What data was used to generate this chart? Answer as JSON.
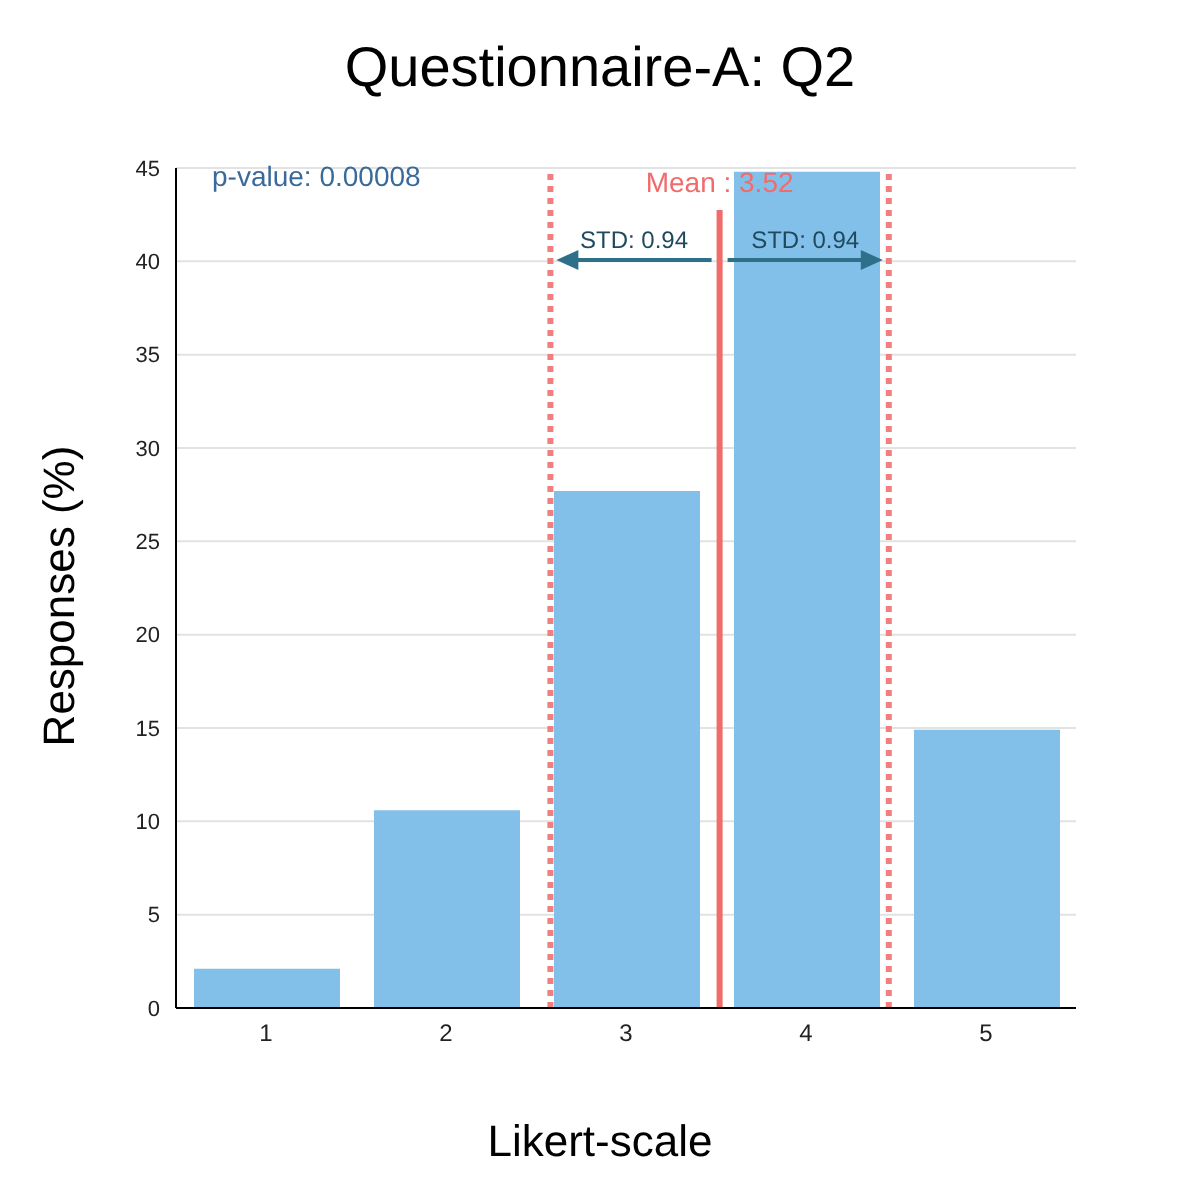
{
  "chart_data": {
    "type": "bar",
    "title": "Questionnaire-A: Q2",
    "xlabel": "Likert-scale",
    "ylabel": "Responses (%)",
    "x": [
      1,
      2,
      3,
      4,
      5
    ],
    "values": [
      2.1,
      10.6,
      27.7,
      44.8,
      14.9
    ],
    "color": "#82c0ea",
    "xlim": [
      0.5,
      5.5
    ],
    "xticks": [
      1,
      2,
      3,
      4,
      5
    ],
    "ylim": [
      0,
      45
    ],
    "yticks": [
      0,
      5,
      10,
      15,
      20,
      25,
      30,
      35,
      40,
      45
    ],
    "grid": "y",
    "ref_lines": [
      {
        "axis": "x",
        "value": 3.52,
        "label": "Mean : 3.52",
        "color": "#f26b6b",
        "line_style": "solid"
      },
      {
        "axis": "x",
        "value": 2.58,
        "color": "#f08080",
        "line_style": "dotted"
      },
      {
        "axis": "x",
        "value": 4.46,
        "color": "#f08080",
        "line_style": "dotted"
      }
    ],
    "annotations": [
      "p-value: 0.00008",
      "STD: 0.94",
      "STD: 0.94"
    ]
  }
}
